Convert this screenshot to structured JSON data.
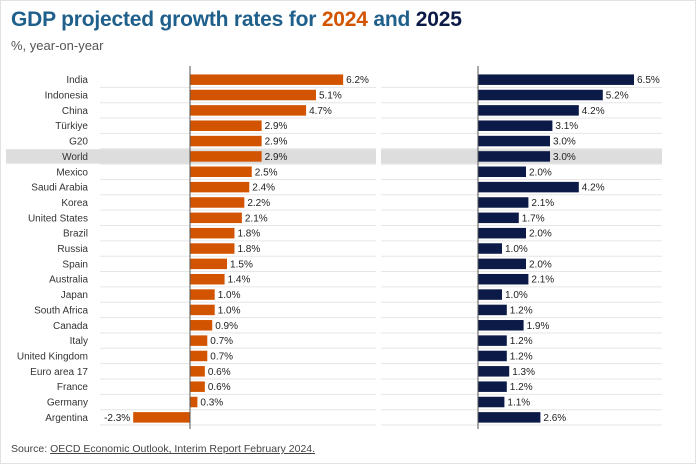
{
  "title": {
    "prefix": "GDP projected growth rates for",
    "year1": "2024",
    "conj": "and",
    "year2": "2025"
  },
  "subtitle": "%, year-on-year",
  "source": {
    "label": "Source:",
    "link": "OECD Economic Outlook, Interim Report February 2024."
  },
  "colors": {
    "series_2024": "#d35400",
    "series_2025": "#0b1a47",
    "highlight_band": "#dddddd",
    "gridline": "#e6e6e6",
    "axis": "#555555"
  },
  "chart_data": [
    {
      "type": "bar",
      "orientation": "horizontal",
      "series_name": "2024",
      "highlight_category": "World",
      "xlim": [
        -2.3,
        6.2
      ],
      "categories": [
        "India",
        "Indonesia",
        "China",
        "Türkiye",
        "G20",
        "World",
        "Mexico",
        "Saudi Arabia",
        "Korea",
        "United States",
        "Brazil",
        "Russia",
        "Spain",
        "Australia",
        "Japan",
        "South Africa",
        "Canada",
        "Italy",
        "United Kingdom",
        "Euro area 17",
        "France",
        "Germany",
        "Argentina"
      ],
      "values": [
        6.2,
        5.1,
        4.7,
        2.9,
        2.9,
        2.9,
        2.5,
        2.4,
        2.2,
        2.1,
        1.8,
        1.8,
        1.5,
        1.4,
        1.0,
        1.0,
        0.9,
        0.7,
        0.7,
        0.6,
        0.6,
        0.3,
        -2.3
      ],
      "value_labels": [
        "6.2%",
        "5.1%",
        "4.7%",
        "2.9%",
        "2.9%",
        "2.9%",
        "2.5%",
        "2.4%",
        "2.2%",
        "2.1%",
        "1.8%",
        "1.8%",
        "1.5%",
        "1.4%",
        "1.0%",
        "1.0%",
        "0.9%",
        "0.7%",
        "0.7%",
        "0.6%",
        "0.6%",
        "0.3%",
        "-2.3%"
      ]
    },
    {
      "type": "bar",
      "orientation": "horizontal",
      "series_name": "2025",
      "highlight_category": "World",
      "xlim": [
        0,
        6.5
      ],
      "categories": [
        "India",
        "Indonesia",
        "China",
        "Türkiye",
        "G20",
        "World",
        "Mexico",
        "Saudi Arabia",
        "Korea",
        "United States",
        "Brazil",
        "Russia",
        "Spain",
        "Australia",
        "Japan",
        "South Africa",
        "Canada",
        "Italy",
        "United Kingdom",
        "Euro area 17",
        "France",
        "Germany",
        "Argentina"
      ],
      "values": [
        6.5,
        5.2,
        4.2,
        3.1,
        3.0,
        3.0,
        2.0,
        4.2,
        2.1,
        1.7,
        2.0,
        1.0,
        2.0,
        2.1,
        1.0,
        1.2,
        1.9,
        1.2,
        1.2,
        1.3,
        1.2,
        1.1,
        2.6
      ],
      "value_labels": [
        "6.5%",
        "5.2%",
        "4.2%",
        "3.1%",
        "3.0%",
        "3.0%",
        "2.0%",
        "4.2%",
        "2.1%",
        "1.7%",
        "2.0%",
        "1.0%",
        "2.0%",
        "2.1%",
        "1.0%",
        "1.2%",
        "1.9%",
        "1.2%",
        "1.2%",
        "1.3%",
        "1.2%",
        "1.1%",
        "2.6%"
      ]
    }
  ]
}
